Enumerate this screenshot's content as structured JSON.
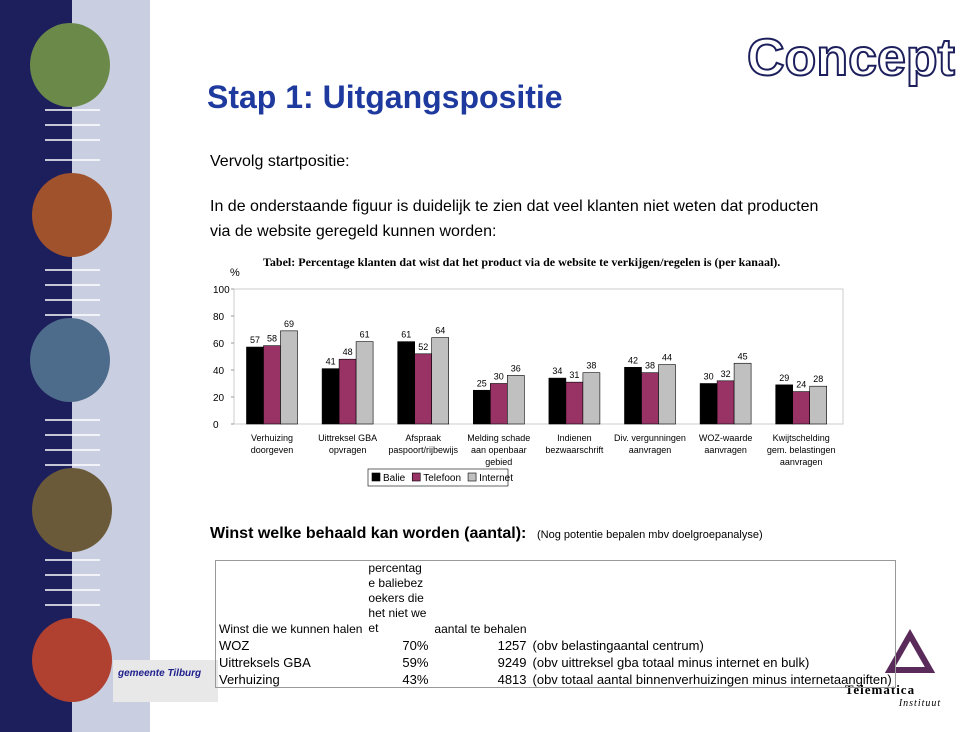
{
  "slide": {
    "title": "Stap 1: Uitgangspositie",
    "stamp": "Concept",
    "subtitle": "Vervolg startpositie:",
    "intro": [
      "In de onderstaande figuur is duidelijk te zien dat veel klanten niet weten dat producten",
      "via de website geregeld kunnen worden:"
    ],
    "section": "Winst welke behaald kan worden (aantal):",
    "section_note": "(Nog potentie bepalen mbv doelgroepanalyse)",
    "logo_left": "gemeente Tilburg",
    "logo_right": [
      "Telematica",
      "Instituut"
    ]
  },
  "chart_data": {
    "type": "bar",
    "title": "Tabel: Percentage klanten dat wist dat het product via de website te verkijgen/regelen is (per kanaal).",
    "y_label": "%",
    "categories": [
      "Verhuizing doorgeven",
      "Uittreksel GBA opvragen",
      "Afspraak paspoort/rijbewijs",
      "Melding schade aan openbaar gebied",
      "Indienen bezwaarschrift",
      "Div. vergunningen aanvragen",
      "WOZ-waarde aanvragen",
      "Kwijtschelding gem. belastingen aanvragen"
    ],
    "series": [
      {
        "name": "Balie",
        "color": "#000000",
        "values": [
          57,
          41,
          61,
          25,
          34,
          42,
          30,
          29
        ]
      },
      {
        "name": "Telefoon",
        "color": "#993366",
        "values": [
          58,
          48,
          52,
          30,
          31,
          38,
          32,
          24
        ]
      },
      {
        "name": "Internet",
        "color": "#c0c0c0",
        "values": [
          69,
          61,
          64,
          36,
          38,
          44,
          45,
          28
        ]
      }
    ],
    "ylim": [
      0,
      100
    ],
    "yticks": [
      0,
      20,
      40,
      60,
      80,
      100
    ],
    "legend": "bottom"
  },
  "table": {
    "header": [
      "Winst die we kunnen halen",
      "percentage baliebezoekers die het niet weet",
      "aantal te behalen"
    ],
    "rows": [
      [
        "WOZ",
        "70%",
        "1257",
        "(obv belastingaantal centrum)"
      ],
      [
        "Uittreksels GBA",
        "59%",
        "9249",
        "(obv uittreksel gba totaal minus internet en bulk)"
      ],
      [
        "Verhuizing",
        "43%",
        "4813",
        "(obv totaal aantal binnenverhuizingen minus internetaangiften)"
      ]
    ]
  }
}
